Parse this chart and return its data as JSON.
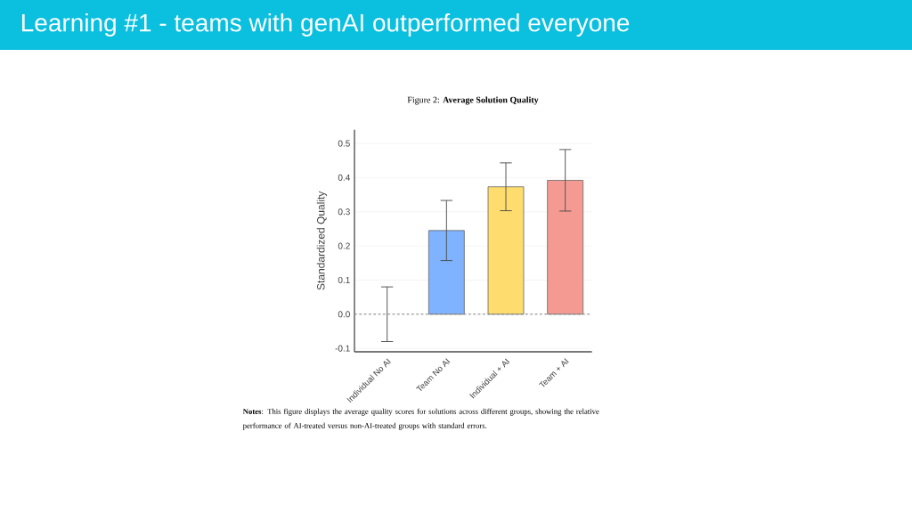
{
  "chart_data": {
    "type": "bar",
    "title": "Learning #1 - teams with genAI outperformed everyone",
    "subtitle": "Figure 2: **Average Solution Quality**",
    "ylabel": "Standardized Quality",
    "categories": [
      "Individual No AI",
      "Team No AI",
      "Individual + AI",
      "Team + AI"
    ],
    "values": [
      0.0,
      0.245,
      0.373,
      0.392
    ],
    "errors": [
      0.08,
      0.088,
      0.07,
      0.09
    ],
    "colors": [
      "#7fb2ff",
      "#7fb2ff",
      "#ffdc6e",
      "#f59a93"
    ],
    "ylim": [
      -0.11,
      0.54
    ],
    "yticks": [
      {
        "value": -0.1,
        "label": "-0.1"
      },
      {
        "value": 0,
        "label": "0.0"
      },
      {
        "value": 0.1,
        "label": "0.1"
      },
      {
        "value": 0.2,
        "label": "0.2"
      },
      {
        "value": 0.3,
        "label": "0.3"
      },
      {
        "value": 0.4,
        "label": "0.4"
      },
      {
        "value": 0.5,
        "label": "0.5"
      }
    ],
    "grid": "y",
    "ref_lines": [
      {
        "axis": "y",
        "value": 0,
        "color": "#808080",
        "line_style": "dashed"
      }
    ],
    "annotations": [
      "**Notes**: This figure displays the average quality scores for solutions across different groups, showing the relative performance of AI-treated versus non-AI-treated groups with standard errors."
    ]
  }
}
